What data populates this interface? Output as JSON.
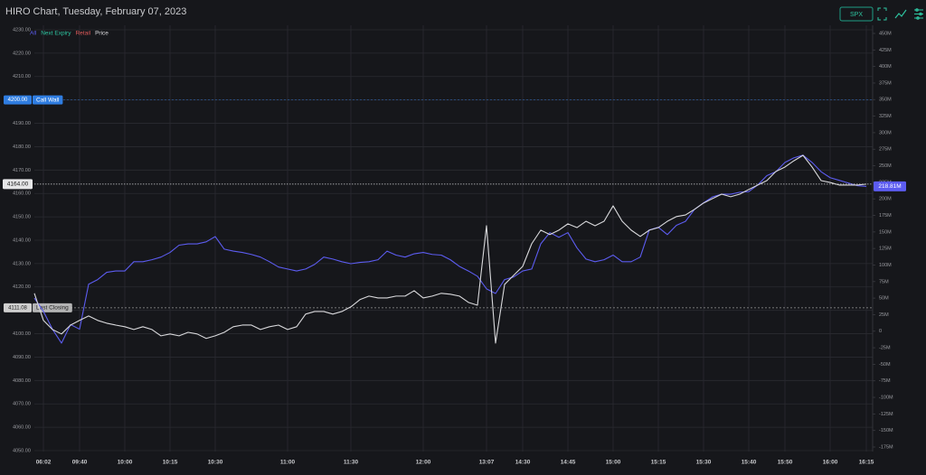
{
  "header": {
    "symbol": "SPX"
  },
  "chart_data": {
    "type": "line",
    "title": "HIRO Chart, Tuesday, February 07, 2023",
    "categories": [
      null,
      "06:02",
      null,
      null,
      null,
      "09:40",
      null,
      null,
      null,
      null,
      "10:00",
      null,
      null,
      null,
      null,
      "10:15",
      null,
      null,
      null,
      null,
      "10:30",
      null,
      null,
      null,
      null,
      null,
      null,
      null,
      "11:00",
      null,
      null,
      null,
      null,
      null,
      null,
      "11:30",
      null,
      null,
      null,
      null,
      null,
      null,
      null,
      "12:00",
      null,
      null,
      null,
      null,
      null,
      null,
      "13:07",
      null,
      null,
      null,
      "14:30",
      null,
      null,
      null,
      null,
      "14:45",
      null,
      null,
      null,
      null,
      "15:00",
      null,
      null,
      null,
      null,
      "15:15",
      null,
      null,
      null,
      null,
      "15:30",
      null,
      null,
      null,
      null,
      "15:40",
      null,
      null,
      null,
      "15:50",
      null,
      null,
      null,
      null,
      "16:00",
      null,
      null,
      null,
      "16:15"
    ],
    "series": [
      {
        "name": "All",
        "color": "#5c5cf0",
        "axis": "y2",
        "values": [
          50,
          30,
          3,
          -18,
          10,
          3,
          71,
          78,
          89,
          91,
          91,
          105,
          105,
          108,
          112,
          119,
          130,
          132,
          132,
          135,
          143,
          124,
          121,
          119,
          116,
          112,
          105,
          97,
          94,
          91,
          94,
          101,
          112,
          109,
          105,
          102,
          104,
          105,
          108,
          121,
          115,
          112,
          117,
          119,
          116,
          115,
          108,
          98,
          91,
          83,
          64,
          57,
          78,
          82,
          91,
          94,
          132,
          149,
          142,
          149,
          126,
          109,
          105,
          108,
          115,
          105,
          105,
          112,
          153,
          157,
          146,
          160,
          166,
          184,
          194,
          203,
          207,
          207,
          210,
          211,
          221,
          235,
          241,
          255,
          262,
          266,
          255,
          241,
          232,
          228,
          224,
          220,
          218.81
        ]
      },
      {
        "name": "Next Expiry",
        "color": "#2ec4a0",
        "axis": "y2",
        "values": [
          null,
          null,
          null,
          null,
          null,
          null,
          null,
          null,
          null,
          null,
          null,
          null,
          null,
          null,
          null,
          null,
          null,
          null,
          null,
          null,
          null,
          null,
          null,
          null,
          null,
          null,
          null,
          null,
          null,
          null,
          null,
          null,
          null,
          null,
          null,
          null,
          null,
          null,
          null,
          null,
          null,
          null,
          null,
          null,
          null,
          null,
          null,
          null,
          null,
          null,
          null,
          null,
          null,
          null,
          null,
          null,
          null,
          null,
          null,
          null,
          null,
          null,
          null,
          null,
          null,
          null,
          null,
          null,
          null,
          null,
          null,
          null,
          null,
          null,
          null,
          null,
          null,
          null,
          null,
          null,
          null,
          null,
          null,
          null,
          null,
          null,
          null,
          null,
          null,
          null,
          null,
          null,
          null
        ]
      },
      {
        "name": "Retail",
        "color": "#e05a5a",
        "axis": "y2",
        "values": [
          null,
          null,
          null,
          null,
          null,
          null,
          null,
          null,
          null,
          null,
          null,
          null,
          null,
          null,
          null,
          null,
          null,
          null,
          null,
          null,
          null,
          null,
          null,
          null,
          null,
          null,
          null,
          null,
          null,
          null,
          null,
          null,
          null,
          null,
          null,
          null,
          null,
          null,
          null,
          null,
          null,
          null,
          null,
          null,
          null,
          null,
          null,
          null,
          null,
          null,
          null,
          null,
          null,
          null,
          null,
          null,
          null,
          null,
          null,
          null,
          null,
          null,
          null,
          null,
          null,
          null,
          null,
          null,
          null,
          null,
          null,
          null,
          null,
          null,
          null,
          null,
          null,
          null,
          null,
          null,
          null,
          null,
          null,
          null,
          null,
          null,
          null,
          null,
          null,
          null,
          null,
          null,
          null
        ]
      },
      {
        "name": "Price",
        "color": "#d9d9dc",
        "axis": "y",
        "values": [
          4117.3,
          4105.7,
          4101.8,
          4099.9,
          4103.7,
          4105.7,
          4107.6,
          4105.7,
          4104.5,
          4103.7,
          4103.0,
          4101.8,
          4103.0,
          4101.8,
          4099.1,
          4099.9,
          4099.1,
          4100.6,
          4099.9,
          4098.0,
          4099.1,
          4100.6,
          4103.0,
          4103.7,
          4103.7,
          4101.8,
          4103.0,
          4103.7,
          4101.8,
          4103.0,
          4108.4,
          4109.5,
          4109.5,
          4108.4,
          4109.5,
          4111.5,
          4114.6,
          4116.1,
          4115.3,
          4115.3,
          4116.1,
          4116.1,
          4118.4,
          4115.3,
          4116.1,
          4117.3,
          4116.9,
          4116.1,
          4113.4,
          4112.2,
          4146.2,
          4096.0,
          4121.1,
          4125.0,
          4128.8,
          4138.5,
          4144.3,
          4142.4,
          4144.3,
          4147.0,
          4145.4,
          4148.1,
          4146.2,
          4148.1,
          4154.7,
          4148.1,
          4144.3,
          4141.6,
          4144.3,
          4145.4,
          4148.1,
          4150.1,
          4150.8,
          4153.2,
          4155.9,
          4157.8,
          4159.7,
          4158.6,
          4159.7,
          4161.7,
          4163.6,
          4165.5,
          4169.4,
          4171.3,
          4174.0,
          4176.3,
          4171.3,
          4165.5,
          4164.7,
          4163.6,
          4163.6,
          4163.6,
          4164
        ]
      }
    ],
    "ylim": [
      4050,
      4230
    ],
    "yticks": [
      {
        "value": 4230,
        "label": "4230.00"
      },
      {
        "value": 4220,
        "label": "4220.00"
      },
      {
        "value": 4210,
        "label": "4210.00"
      },
      {
        "value": 4200,
        "label": "4200.00"
      },
      {
        "value": 4190,
        "label": "4190.00"
      },
      {
        "value": 4180,
        "label": "4180.00"
      },
      {
        "value": 4170,
        "label": "4170.00"
      },
      {
        "value": 4160,
        "label": "4160.00"
      },
      {
        "value": 4150,
        "label": "4150.00"
      },
      {
        "value": 4140,
        "label": "4140.00"
      },
      {
        "value": 4130,
        "label": "4130.00"
      },
      {
        "value": 4120,
        "label": "4120.00"
      },
      {
        "value": 4110,
        "label": "4110.00"
      },
      {
        "value": 4100,
        "label": "4100.00"
      },
      {
        "value": 4090,
        "label": "4090.00"
      },
      {
        "value": 4080,
        "label": "4080.00"
      },
      {
        "value": 4070,
        "label": "4070.00"
      },
      {
        "value": 4060,
        "label": "4060.00"
      },
      {
        "value": 4050,
        "label": "4050.00"
      }
    ],
    "y2lim": [
      -175,
      450
    ],
    "y2ticks": [
      {
        "value": 450,
        "label": "450M"
      },
      {
        "value": 425,
        "label": "425M"
      },
      {
        "value": 400,
        "label": "400M"
      },
      {
        "value": 375,
        "label": "375M"
      },
      {
        "value": 350,
        "label": "350M"
      },
      {
        "value": 325,
        "label": "325M"
      },
      {
        "value": 300,
        "label": "300M"
      },
      {
        "value": 275,
        "label": "275M"
      },
      {
        "value": 250,
        "label": "250M"
      },
      {
        "value": 225,
        "label": "225M"
      },
      {
        "value": 200,
        "label": "200M"
      },
      {
        "value": 175,
        "label": "175M"
      },
      {
        "value": 150,
        "label": "150M"
      },
      {
        "value": 125,
        "label": "125M"
      },
      {
        "value": 100,
        "label": "100M"
      },
      {
        "value": 75,
        "label": "75M"
      },
      {
        "value": 50,
        "label": "50M"
      },
      {
        "value": 25,
        "label": "25M"
      },
      0,
      {
        "value": -25,
        "label": "-25M"
      },
      {
        "value": -50,
        "label": "-50M"
      },
      {
        "value": -75,
        "label": "-75M"
      },
      {
        "value": -100,
        "label": "-100M"
      },
      {
        "value": -125,
        "label": "-125M"
      },
      {
        "value": -150,
        "label": "-150M"
      },
      {
        "value": -175,
        "label": "-175M"
      }
    ],
    "grid": true,
    "annotations": [
      {
        "value": 4200,
        "label": "4200.00",
        "text": "Call Wall",
        "color": "#2f7de1"
      },
      {
        "value": 4111.08,
        "label": "4111.08",
        "text": "Last Closing",
        "color": "#cfcfcf"
      }
    ],
    "last_price": {
      "value": 4164,
      "label": "4164.00"
    },
    "last_all": {
      "value": 218.81,
      "label": "218.81M"
    }
  }
}
